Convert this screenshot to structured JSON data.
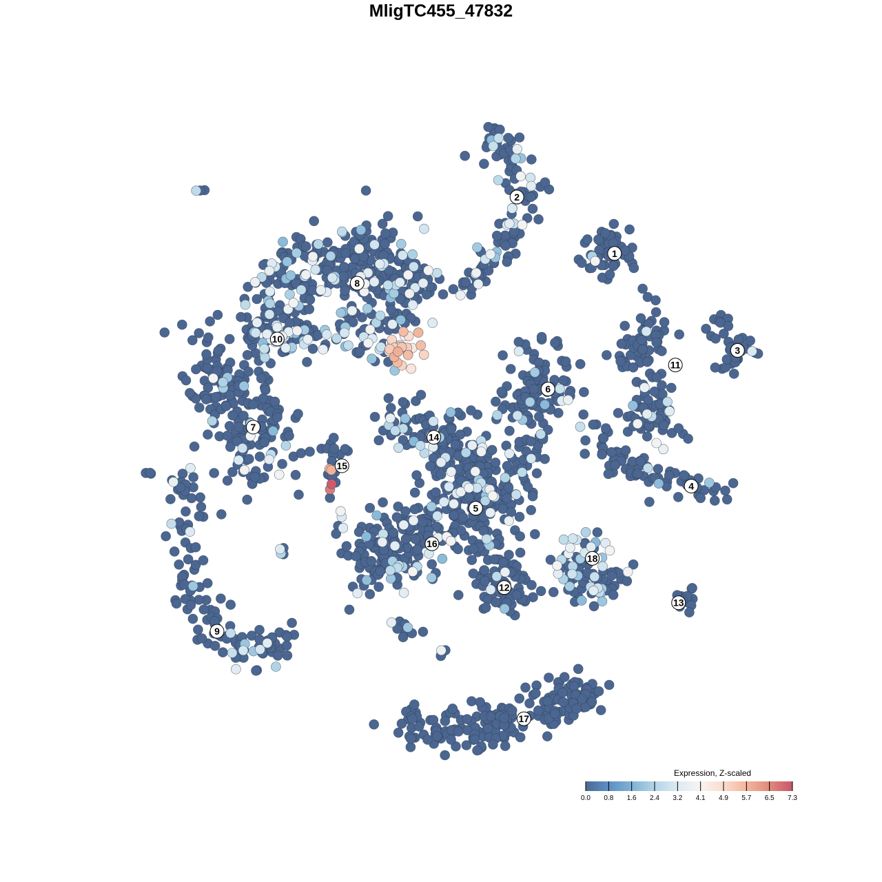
{
  "chart_data": {
    "type": "scatter",
    "title": "MligTC455_47832",
    "xlabel": "",
    "ylabel": "",
    "axes_visible": false,
    "grid": false,
    "xlim": [
      -50,
      50
    ],
    "ylim": [
      -50,
      50
    ],
    "point_fill_default": "#4b6690",
    "point_outline": "#2e3e55",
    "legend": {
      "title": "Expression, Z-scaled",
      "placement": "bottom-right",
      "ticks": [
        "0.0",
        "0.8",
        "1.6",
        "2.4",
        "3.2",
        "4.1",
        "4.9",
        "5.7",
        "6.5",
        "7.3"
      ],
      "range": [
        0,
        7.3
      ],
      "colors": [
        "#4b6a95",
        "#5e8fc2",
        "#7fb2d5",
        "#b3d5e6",
        "#dceaf2",
        "#f7f4f2",
        "#fadccc",
        "#f2b59b",
        "#df8a7c",
        "#c8566a"
      ]
    },
    "clusters": [
      {
        "label": "1",
        "label_pos": [
          25.2,
          28.5
        ],
        "spread": 2.4,
        "n": 60,
        "anchors": [
          [
            24.5,
            28.8
          ]
        ],
        "light_fraction": 0.05
      },
      {
        "label": "2",
        "label_pos": [
          9.8,
          37.4
        ],
        "spread": 1.4,
        "n": 120,
        "anchors": [
          [
            3.3,
            47.3
          ],
          [
            8.7,
            44.6
          ],
          [
            11.4,
            38
          ],
          [
            8.7,
            31.5
          ],
          [
            4.3,
            26.1
          ],
          [
            2.2,
            23.9
          ]
        ],
        "light_fraction": 0.2
      },
      {
        "label": "3",
        "label_pos": [
          44.6,
          13.2
        ],
        "spread": 1.2,
        "n": 40,
        "anchors": [
          [
            41.3,
            19
          ],
          [
            45.1,
            12.5
          ],
          [
            42.4,
            10.9
          ]
        ],
        "light_fraction": 0.05
      },
      {
        "label": "4",
        "label_pos": [
          37.3,
          -8.2
        ],
        "spread": 1.2,
        "n": 80,
        "anchors": [
          [
            21.7,
            2.2
          ],
          [
            26.1,
            -4.3
          ],
          [
            32.6,
            -7.6
          ],
          [
            42.4,
            -8.7
          ]
        ],
        "light_fraction": 0.05
      },
      {
        "label": "5",
        "label_pos": [
          3.3,
          -11.7
        ],
        "spread": 3.8,
        "n": 260,
        "anchors": [
          [
            3.3,
            -9.8
          ],
          [
            4.3,
            -5.4
          ],
          [
            2.2,
            -16.3
          ]
        ],
        "light_fraction": 0.15
      },
      {
        "label": "6",
        "label_pos": [
          14.7,
          7.1
        ],
        "spread": 2.8,
        "n": 120,
        "anchors": [
          [
            13,
            10.9
          ],
          [
            14.1,
            6.5
          ],
          [
            10.9,
            1.1
          ]
        ],
        "light_fraction": 0.05
      },
      {
        "label": "7",
        "label_pos": [
          -31.8,
          1.1
        ],
        "spread": 2.8,
        "n": 200,
        "anchors": [
          [
            -37,
            15.2
          ],
          [
            -38,
            7.6
          ],
          [
            -31.5,
            3.3
          ],
          [
            -29.3,
            -5.4
          ],
          [
            -39,
            1.1
          ]
        ],
        "light_fraction": 0.04
      },
      {
        "label": "8",
        "label_pos": [
          -15.4,
          23.8
        ],
        "spread": 2.8,
        "n": 300,
        "anchors": [
          [
            -30.4,
            22.8
          ],
          [
            -22.8,
            26.1
          ],
          [
            -14.1,
            28.3
          ],
          [
            -7.6,
            26.1
          ],
          [
            -7.6,
            20.7
          ]
        ],
        "light_fraction": 0.2
      },
      {
        "label": "9",
        "label_pos": [
          -37.5,
          -31.1
        ],
        "spread": 1.5,
        "n": 130,
        "anchors": [
          [
            -41.8,
            -5.4
          ],
          [
            -42.4,
            -18.5
          ],
          [
            -40.2,
            -29.3
          ],
          [
            -33.7,
            -34.8
          ],
          [
            -26.1,
            -32.6
          ]
        ],
        "light_fraction": 0.1
      },
      {
        "label": "10",
        "label_pos": [
          -28.0,
          15.0
        ],
        "spread": 2.0,
        "n": 180,
        "anchors": [
          [
            -30.4,
            16.3
          ],
          [
            -28.3,
            15.2
          ],
          [
            -19.6,
            16.8
          ],
          [
            -10.9,
            16.3
          ],
          [
            -7.6,
            12
          ]
        ],
        "light_fraction": 0.35
      },
      {
        "label": "11",
        "label_pos": [
          34.8,
          10.9
        ],
        "spread": 1.6,
        "n": 120,
        "anchors": [
          [
            30.4,
            20.7
          ],
          [
            31.5,
            14.1
          ],
          [
            26.1,
            13.6
          ],
          [
            32.6,
            6.5
          ],
          [
            28.3,
            2.2
          ],
          [
            35.9,
            0
          ]
        ],
        "light_fraction": 0.08
      },
      {
        "label": "12",
        "label_pos": [
          7.8,
          -24.2
        ],
        "spread": 2.4,
        "n": 80,
        "anchors": [
          [
            6.5,
            -21.7
          ],
          [
            8.7,
            -25
          ]
        ],
        "light_fraction": 0.05
      },
      {
        "label": "13",
        "label_pos": [
          35.3,
          -26.6
        ],
        "spread": 1.0,
        "n": 14,
        "anchors": [
          [
            35.3,
            -26.6
          ],
          [
            37.5,
            -25
          ]
        ],
        "light_fraction": 0
      },
      {
        "label": "14",
        "label_pos": [
          -3.3,
          -0.5
        ],
        "spread": 2.0,
        "n": 90,
        "anchors": [
          [
            -10.9,
            1.6
          ],
          [
            -4.3,
            0
          ],
          [
            1.1,
            -2.2
          ]
        ],
        "light_fraction": 0.15
      },
      {
        "label": "15",
        "label_pos": [
          -17.8,
          -5.0
        ],
        "spread": 0.8,
        "n": 20,
        "anchors": [
          [
            -19.6,
            -1.1
          ],
          [
            -17.9,
            -3.8
          ],
          [
            -19.8,
            -8.2
          ]
        ],
        "light_fraction": 0
      },
      {
        "label": "16",
        "label_pos": [
          -3.6,
          -17.3
        ],
        "spread": 3.0,
        "n": 180,
        "anchors": [
          [
            -6.5,
            -17.4
          ],
          [
            -13,
            -20.7
          ],
          [
            -5,
            -12
          ]
        ],
        "light_fraction": 0.1
      },
      {
        "label": "17",
        "label_pos": [
          10.9,
          -44.9
        ],
        "spread": 1.8,
        "n": 200,
        "anchors": [
          [
            -8.7,
            -47.3
          ],
          [
            2.2,
            -46.2
          ],
          [
            10.9,
            -44.6
          ],
          [
            21.7,
            -40.8
          ],
          [
            15,
            -42
          ]
        ],
        "light_fraction": 0
      },
      {
        "label": "18",
        "label_pos": [
          21.7,
          -19.6
        ],
        "spread": 1.9,
        "n": 90,
        "anchors": [
          [
            20.7,
            -17.4
          ],
          [
            19.6,
            -23.9
          ],
          [
            26.1,
            -22.8
          ]
        ],
        "light_fraction": 0.3
      }
    ],
    "outlier_groups": [
      {
        "anchors": [
          [
            -40.2,
            38.6
          ]
        ],
        "spread": 0.4,
        "n": 3
      },
      {
        "anchors": [
          [
            -48,
            -6.5
          ]
        ],
        "spread": 0.4,
        "n": 3
      },
      {
        "anchors": [
          [
            -27.2,
            -19
          ]
        ],
        "spread": 0.5,
        "n": 4
      },
      {
        "anchors": [
          [
            -18.5,
            -14.1
          ]
        ],
        "spread": 0.8,
        "n": 5
      },
      {
        "anchors": [
          [
            -1.6,
            -34.8
          ]
        ],
        "spread": 0.5,
        "n": 4
      },
      {
        "anchors": [
          [
            -7.6,
            -29.9
          ]
        ],
        "spread": 1.2,
        "n": 10
      }
    ],
    "expression_hotspots": [
      {
        "center": [
          -7.3,
          13.0
        ],
        "radius": 3.5,
        "value_range": [
          4.1,
          5.8
        ]
      },
      {
        "center": [
          -18.9,
          -5.0
        ],
        "radius": 1.6,
        "value_range": [
          5.0,
          6.6
        ]
      },
      {
        "center": [
          -19.8,
          -8.2
        ],
        "radius": 0.9,
        "value_range": [
          6.5,
          7.3
        ]
      }
    ]
  }
}
